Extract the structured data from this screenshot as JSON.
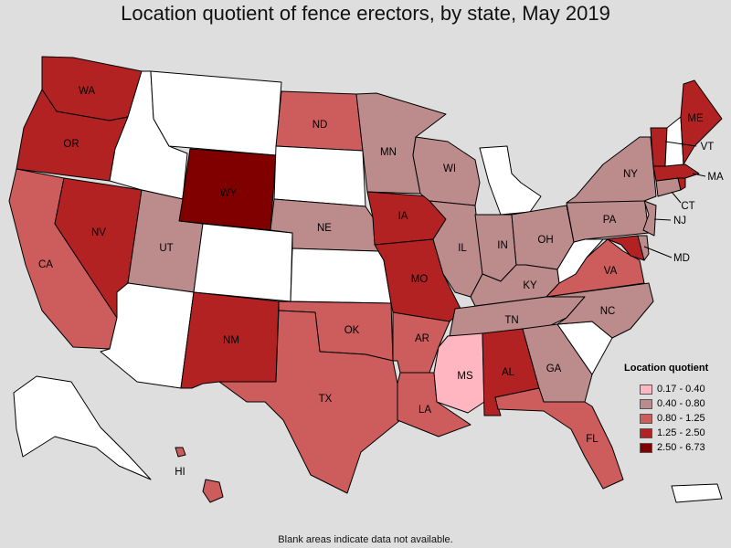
{
  "title": "Location quotient of fence erectors, by state, May 2019",
  "legend": {
    "title": "Location quotient",
    "items": [
      {
        "label": "0.17 - 0.40",
        "color": "#ffb6c1"
      },
      {
        "label": "0.40 - 0.80",
        "color": "#bc8c8c"
      },
      {
        "label": "0.80 - 1.25",
        "color": "#cd5c5c"
      },
      {
        "label": "1.25 - 2.50",
        "color": "#b22222"
      },
      {
        "label": "2.50 - 6.73",
        "color": "#800000"
      }
    ],
    "no_data_color": "#ffffff"
  },
  "footnote": "Blank areas indicate data not available.",
  "states": {
    "WA": {
      "label": "WA",
      "class": 3
    },
    "OR": {
      "label": "OR",
      "class": 3
    },
    "CA": {
      "label": "CA",
      "class": 2
    },
    "NV": {
      "label": "NV",
      "class": 3
    },
    "ID": {
      "label": "",
      "class": null
    },
    "MT": {
      "label": "",
      "class": null
    },
    "WY": {
      "label": "WY",
      "class": 4
    },
    "UT": {
      "label": "UT",
      "class": 1
    },
    "AZ": {
      "label": "",
      "class": null
    },
    "CO": {
      "label": "",
      "class": null
    },
    "NM": {
      "label": "NM",
      "class": 3
    },
    "ND": {
      "label": "ND",
      "class": 2
    },
    "SD": {
      "label": "",
      "class": null
    },
    "NE": {
      "label": "NE",
      "class": 1
    },
    "KS": {
      "label": "",
      "class": null
    },
    "OK": {
      "label": "OK",
      "class": 2
    },
    "TX": {
      "label": "TX",
      "class": 2
    },
    "MN": {
      "label": "MN",
      "class": 1
    },
    "IA": {
      "label": "IA",
      "class": 3
    },
    "MO": {
      "label": "MO",
      "class": 3
    },
    "AR": {
      "label": "AR",
      "class": 2
    },
    "LA": {
      "label": "LA",
      "class": 2
    },
    "WI": {
      "label": "WI",
      "class": 1
    },
    "IL": {
      "label": "IL",
      "class": 1
    },
    "MI": {
      "label": "",
      "class": null
    },
    "IN": {
      "label": "IN",
      "class": 1
    },
    "OH": {
      "label": "OH",
      "class": 1
    },
    "KY": {
      "label": "KY",
      "class": 1
    },
    "TN": {
      "label": "TN",
      "class": 1
    },
    "MS": {
      "label": "MS",
      "class": 0
    },
    "AL": {
      "label": "AL",
      "class": 3
    },
    "GA": {
      "label": "GA",
      "class": 1
    },
    "FL": {
      "label": "FL",
      "class": 2
    },
    "SC": {
      "label": "",
      "class": null
    },
    "NC": {
      "label": "NC",
      "class": 1
    },
    "VA": {
      "label": "VA",
      "class": 2
    },
    "WV": {
      "label": "",
      "class": null
    },
    "PA": {
      "label": "PA",
      "class": 1
    },
    "NY": {
      "label": "NY",
      "class": 1
    },
    "MD": {
      "label": "MD",
      "class": 3
    },
    "DE": {
      "label": "",
      "class": 1
    },
    "NJ": {
      "label": "NJ",
      "class": 1
    },
    "CT": {
      "label": "CT",
      "class": 1
    },
    "MA": {
      "label": "MA",
      "class": 3
    },
    "VT": {
      "label": "VT",
      "class": 3
    },
    "NH": {
      "label": "",
      "class": null
    },
    "ME": {
      "label": "ME",
      "class": 3
    },
    "RI": {
      "label": "",
      "class": 3
    },
    "AK": {
      "label": "",
      "class": null
    },
    "HI": {
      "label": "HI",
      "class": 2
    },
    "PR": {
      "label": "",
      "class": null
    }
  }
}
